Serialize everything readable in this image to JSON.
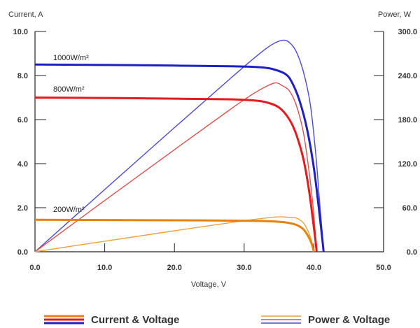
{
  "chart_data": {
    "type": "line",
    "y_left_label": "Current, A",
    "y_right_label": "Power, W",
    "x_label": "Voltage, V",
    "xlim": [
      0,
      50
    ],
    "ylim_left": [
      0,
      10
    ],
    "ylim_right": [
      0,
      300
    ],
    "x_ticks": [
      "0.0",
      "10.0",
      "20.0",
      "30.0",
      "40.0",
      "50.0"
    ],
    "y_left_ticks": [
      "0.0",
      "2.0",
      "4.0",
      "6.0",
      "8.0",
      "10.0"
    ],
    "y_right_ticks": [
      "0.0",
      "60.0",
      "120.0",
      "180.0",
      "240.0",
      "300.0"
    ],
    "irradiance_labels": [
      "1000W/m²",
      "800W/m²",
      "200W/m²"
    ],
    "legend": [
      {
        "label": "Current & Voltage",
        "colors": [
          "#e8820c",
          "#e41a1c",
          "#1f1fc8"
        ]
      },
      {
        "label": "Power & Voltage",
        "colors": [
          "#e8a23c",
          "#d9534f",
          "#4a4ad8"
        ]
      }
    ],
    "series": [
      {
        "irradiance": "1000W/m²",
        "color": "#1f1fc8",
        "power_color": "#4a4ad8",
        "iv": [
          [
            0,
            8.5
          ],
          [
            10,
            8.48
          ],
          [
            20,
            8.45
          ],
          [
            28,
            8.42
          ],
          [
            32,
            8.38
          ],
          [
            34,
            8.3
          ],
          [
            36,
            8.05
          ],
          [
            37,
            7.6
          ],
          [
            38,
            6.8
          ],
          [
            39,
            5.6
          ],
          [
            40,
            3.8
          ],
          [
            40.7,
            2.0
          ],
          [
            41.2,
            0.6
          ],
          [
            41.4,
            0.0
          ]
        ],
        "pv": [
          [
            0,
            0
          ],
          [
            10,
            84.8
          ],
          [
            20,
            169
          ],
          [
            28,
            235.8
          ],
          [
            32,
            268.2
          ],
          [
            34,
            282.2
          ],
          [
            35.5,
            288
          ],
          [
            36.5,
            285
          ],
          [
            37.5,
            272
          ],
          [
            38.5,
            245
          ],
          [
            39.5,
            200
          ],
          [
            40.3,
            130
          ],
          [
            40.8,
            70
          ],
          [
            41.2,
            25
          ],
          [
            41.4,
            0
          ]
        ]
      },
      {
        "irradiance": "800W/m²",
        "color": "#e41a1c",
        "power_color": "#d9534f",
        "iv": [
          [
            0,
            7.0
          ],
          [
            10,
            6.98
          ],
          [
            20,
            6.95
          ],
          [
            28,
            6.92
          ],
          [
            31,
            6.88
          ],
          [
            33,
            6.8
          ],
          [
            35,
            6.55
          ],
          [
            36.5,
            6.0
          ],
          [
            37.5,
            5.3
          ],
          [
            38.5,
            4.2
          ],
          [
            39.3,
            2.8
          ],
          [
            39.8,
            1.6
          ],
          [
            40.2,
            0.6
          ],
          [
            40.4,
            0.0
          ]
        ],
        "pv": [
          [
            0,
            0
          ],
          [
            10,
            69.8
          ],
          [
            20,
            139
          ],
          [
            28,
            193.8
          ],
          [
            31,
            213.3
          ],
          [
            33,
            224.4
          ],
          [
            34.5,
            230
          ],
          [
            35.5,
            226
          ],
          [
            36.5,
            219
          ],
          [
            37.5,
            199
          ],
          [
            38.5,
            162
          ],
          [
            39.3,
            110
          ],
          [
            39.9,
            60
          ],
          [
            40.4,
            0
          ]
        ]
      },
      {
        "irradiance": "200W/m²",
        "color": "#e8820c",
        "power_color": "#e8a23c",
        "iv": [
          [
            0,
            1.45
          ],
          [
            10,
            1.44
          ],
          [
            20,
            1.43
          ],
          [
            30,
            1.41
          ],
          [
            34,
            1.38
          ],
          [
            36,
            1.33
          ],
          [
            37.5,
            1.22
          ],
          [
            38.5,
            1.02
          ],
          [
            39.2,
            0.7
          ],
          [
            39.7,
            0.35
          ],
          [
            40.0,
            0.0
          ]
        ],
        "pv": [
          [
            0,
            0
          ],
          [
            10,
            14.4
          ],
          [
            20,
            28.6
          ],
          [
            30,
            42.3
          ],
          [
            34,
            46.9
          ],
          [
            35.5,
            47.5
          ],
          [
            36.5,
            46.5
          ],
          [
            37.5,
            45.8
          ],
          [
            38.5,
            39.3
          ],
          [
            39.2,
            27.4
          ],
          [
            39.7,
            13.9
          ],
          [
            40.0,
            0
          ]
        ]
      }
    ]
  }
}
